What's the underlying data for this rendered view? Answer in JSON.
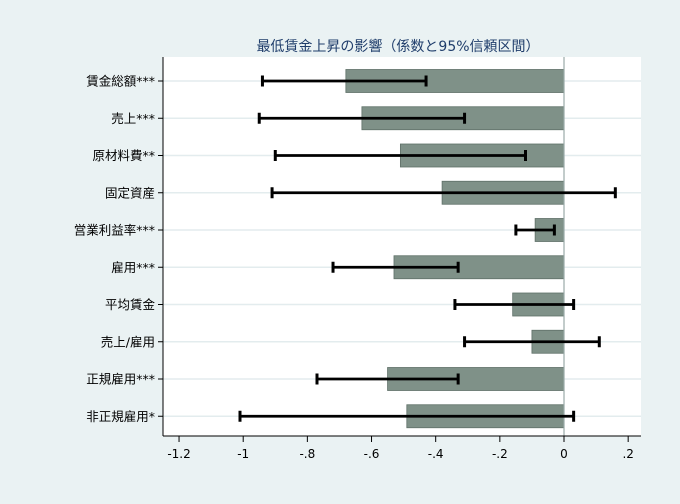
{
  "chart_data": {
    "type": "bar",
    "orientation": "horizontal",
    "title": "最低賃金上昇の影響（係数と95%信頼区間）",
    "xlabel": "",
    "ylabel": "",
    "xlim": [
      -1.25,
      0.24
    ],
    "xticks": [
      -1.2,
      -1,
      -0.8,
      -0.6,
      -0.4,
      -0.2,
      0,
      0.2
    ],
    "xtick_labels": [
      "-1.2",
      "-1",
      "-.8",
      "-.6",
      "-.4",
      "-.2",
      "0",
      ".2"
    ],
    "grid": true,
    "categories": [
      "賃金総額***",
      "売上***",
      "原材料費**",
      "固定資産",
      "営業利益率***",
      "雇用***",
      "平均賃金",
      "売上/雇用",
      "正規雇用***",
      "非正規雇用*"
    ],
    "values": [
      -0.68,
      -0.63,
      -0.51,
      -0.38,
      -0.09,
      -0.53,
      -0.16,
      -0.1,
      -0.55,
      -0.49
    ],
    "ci_low": [
      -0.94,
      -0.95,
      -0.9,
      -0.91,
      -0.15,
      -0.72,
      -0.34,
      -0.31,
      -0.77,
      -1.01
    ],
    "ci_high": [
      -0.43,
      -0.31,
      -0.12,
      0.16,
      -0.03,
      -0.33,
      0.03,
      0.11,
      -0.33,
      0.03
    ],
    "colors": {
      "background": "#eaf2f3",
      "plot_background": "#ffffff",
      "bar_fill": "#7f9188",
      "bar_stroke": "#5f7068",
      "error_bar": "#000000",
      "grid": "#e3ecee",
      "zero_line": "#9aaaa8",
      "title": "#1f3d6b",
      "text": "#000000"
    }
  }
}
